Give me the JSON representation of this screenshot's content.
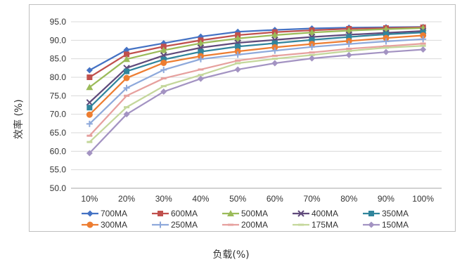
{
  "chart_data": {
    "type": "line",
    "xlabel": "负载(%)",
    "ylabel": "效率 (%)",
    "categories": [
      "10%",
      "20%",
      "30%",
      "40%",
      "50%",
      "60%",
      "70%",
      "80%",
      "90%",
      "100%"
    ],
    "ylim": [
      50.0,
      95.0
    ],
    "yticks": [
      "95.0",
      "90.0",
      "85.0",
      "80.0",
      "75.0",
      "70.0",
      "65.0",
      "60.0",
      "55.0",
      "50.0"
    ],
    "grid": "horizontal",
    "legend": "bottom",
    "series": [
      {
        "name": "700MA",
        "color": "#4472C4",
        "marker": "diamond",
        "values": [
          81.9,
          87.4,
          89.2,
          91.0,
          92.3,
          92.8,
          93.2,
          93.4,
          93.5,
          93.6
        ]
      },
      {
        "name": "600MA",
        "color": "#C0504D",
        "marker": "square",
        "values": [
          80.0,
          86.2,
          88.3,
          90.0,
          91.4,
          92.2,
          92.7,
          93.1,
          93.3,
          93.5
        ]
      },
      {
        "name": "500MA",
        "color": "#9BBB59",
        "marker": "triangle",
        "values": [
          77.3,
          84.9,
          87.3,
          89.2,
          90.5,
          91.4,
          92.1,
          92.6,
          93.0,
          93.3
        ]
      },
      {
        "name": "400MA",
        "color": "#604A7B",
        "marker": "x",
        "values": [
          73.2,
          82.5,
          85.9,
          88.0,
          89.3,
          90.1,
          90.9,
          91.5,
          92.0,
          92.5
        ]
      },
      {
        "name": "350MA",
        "color": "#31859C",
        "marker": "square",
        "values": [
          71.8,
          81.6,
          84.8,
          86.9,
          88.3,
          89.2,
          90.1,
          90.9,
          91.6,
          92.1
        ]
      },
      {
        "name": "300MA",
        "color": "#ED7D31",
        "marker": "circle",
        "values": [
          69.9,
          79.8,
          83.9,
          85.7,
          87.0,
          88.1,
          89.0,
          89.8,
          90.6,
          91.3
        ]
      },
      {
        "name": "250MA",
        "color": "#8EA9DB",
        "marker": "plus",
        "values": [
          67.4,
          77.1,
          82.0,
          84.9,
          86.1,
          87.2,
          88.2,
          89.0,
          89.7,
          90.3
        ]
      },
      {
        "name": "200MA",
        "color": "#E6A09E",
        "marker": "dash",
        "values": [
          64.2,
          75.0,
          79.7,
          82.1,
          84.5,
          85.8,
          86.7,
          87.7,
          88.4,
          89.1
        ]
      },
      {
        "name": "175MA",
        "color": "#C4D79B",
        "marker": "dash",
        "values": [
          62.5,
          71.9,
          77.6,
          80.6,
          83.8,
          85.0,
          86.0,
          87.1,
          88.0,
          88.5
        ]
      },
      {
        "name": "150MA",
        "color": "#A393C2",
        "marker": "diamond",
        "values": [
          59.5,
          70.0,
          76.1,
          79.6,
          82.1,
          83.8,
          85.1,
          86.0,
          86.8,
          87.5
        ]
      }
    ]
  }
}
